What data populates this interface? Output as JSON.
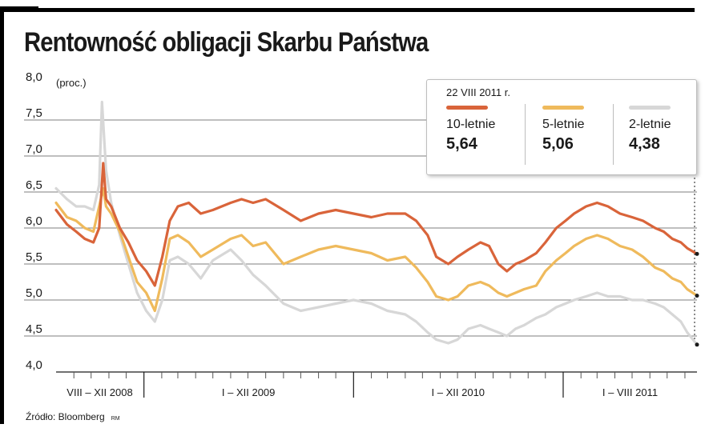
{
  "title": "Rentowność obligacji Skarbu Państwa",
  "source": "Źródło: Bloomberg",
  "source_credit": "RM",
  "legend": {
    "date": "22 VIII 2011 r.",
    "items": [
      {
        "name": "10-letnie",
        "value_text": "5,64"
      },
      {
        "name": "5-letnie",
        "value_text": "5,06"
      },
      {
        "name": "2-letnie",
        "value_text": "4,38"
      }
    ]
  },
  "chart_data": {
    "type": "line",
    "title": "Rentowność obligacji Skarbu Państwa",
    "ylabel": "(proc.)",
    "ylim": [
      4.0,
      8.0
    ],
    "ytick_values": [
      4.0,
      4.5,
      5.0,
      5.5,
      6.0,
      6.5,
      7.0,
      7.5,
      8.0
    ],
    "ytick_labels": [
      "4,0",
      "4,5",
      "5,0",
      "5,5",
      "6,0",
      "6,5",
      "7,0",
      "7,5",
      "8,0"
    ],
    "xlim": [
      "2008-08-01",
      "2011-08-22"
    ],
    "x_periods": [
      {
        "label": "VIII – XII 2008",
        "start": "2008-08-01",
        "end": "2008-12-31"
      },
      {
        "label": "I – XII 2009",
        "start": "2009-01-01",
        "end": "2009-12-31"
      },
      {
        "label": "I – XII 2010",
        "start": "2010-01-01",
        "end": "2010-12-31"
      },
      {
        "label": "I – VIII 2011",
        "start": "2011-01-01",
        "end": "2011-08-22"
      }
    ],
    "x_month_ticks": [
      "2008-09-01",
      "2008-10-01",
      "2008-11-01",
      "2008-12-01",
      "2009-02-01",
      "2009-03-01",
      "2009-04-01",
      "2009-05-01",
      "2009-06-01",
      "2009-07-01",
      "2009-08-01",
      "2009-09-01",
      "2009-10-01",
      "2009-11-01",
      "2009-12-01",
      "2010-02-01",
      "2010-03-01",
      "2010-04-01",
      "2010-05-01",
      "2010-06-01",
      "2010-07-01",
      "2010-08-01",
      "2010-09-01",
      "2010-10-01",
      "2010-11-01",
      "2010-12-01",
      "2011-02-01",
      "2011-03-01",
      "2011-04-01",
      "2011-05-01",
      "2011-06-01",
      "2011-07-01",
      "2011-08-01"
    ],
    "grid": true,
    "legend_position": "top-right",
    "series": [
      {
        "name": "10-letnie",
        "color": "#d9643a",
        "points": [
          [
            "2008-08-01",
            6.25
          ],
          [
            "2008-08-20",
            6.05
          ],
          [
            "2008-09-05",
            5.95
          ],
          [
            "2008-09-20",
            5.85
          ],
          [
            "2008-10-05",
            5.8
          ],
          [
            "2008-10-15",
            6.0
          ],
          [
            "2008-10-22",
            6.9
          ],
          [
            "2008-10-27",
            6.4
          ],
          [
            "2008-11-05",
            6.3
          ],
          [
            "2008-11-20",
            6.0
          ],
          [
            "2008-12-05",
            5.8
          ],
          [
            "2008-12-20",
            5.55
          ],
          [
            "2009-01-05",
            5.4
          ],
          [
            "2009-01-20",
            5.2
          ],
          [
            "2009-02-02",
            5.6
          ],
          [
            "2009-02-15",
            6.1
          ],
          [
            "2009-03-01",
            6.3
          ],
          [
            "2009-03-20",
            6.35
          ],
          [
            "2009-04-10",
            6.2
          ],
          [
            "2009-05-01",
            6.25
          ],
          [
            "2009-06-01",
            6.35
          ],
          [
            "2009-06-20",
            6.4
          ],
          [
            "2009-07-10",
            6.35
          ],
          [
            "2009-08-01",
            6.4
          ],
          [
            "2009-09-01",
            6.25
          ],
          [
            "2009-10-01",
            6.1
          ],
          [
            "2009-11-01",
            6.2
          ],
          [
            "2009-12-01",
            6.25
          ],
          [
            "2010-01-01",
            6.2
          ],
          [
            "2010-02-01",
            6.15
          ],
          [
            "2010-03-01",
            6.2
          ],
          [
            "2010-04-01",
            6.2
          ],
          [
            "2010-04-20",
            6.1
          ],
          [
            "2010-05-10",
            5.9
          ],
          [
            "2010-05-25",
            5.6
          ],
          [
            "2010-06-15",
            5.5
          ],
          [
            "2010-07-01",
            5.6
          ],
          [
            "2010-07-20",
            5.7
          ],
          [
            "2010-08-10",
            5.8
          ],
          [
            "2010-08-25",
            5.75
          ],
          [
            "2010-09-10",
            5.5
          ],
          [
            "2010-09-25",
            5.4
          ],
          [
            "2010-10-10",
            5.5
          ],
          [
            "2010-10-25",
            5.55
          ],
          [
            "2010-11-15",
            5.65
          ],
          [
            "2010-12-01",
            5.8
          ],
          [
            "2010-12-20",
            6.0
          ],
          [
            "2011-01-05",
            6.1
          ],
          [
            "2011-01-20",
            6.2
          ],
          [
            "2011-02-10",
            6.3
          ],
          [
            "2011-03-01",
            6.35
          ],
          [
            "2011-03-20",
            6.3
          ],
          [
            "2011-04-10",
            6.2
          ],
          [
            "2011-05-01",
            6.15
          ],
          [
            "2011-05-20",
            6.1
          ],
          [
            "2011-06-10",
            6.0
          ],
          [
            "2011-06-25",
            5.95
          ],
          [
            "2011-07-10",
            5.85
          ],
          [
            "2011-07-25",
            5.8
          ],
          [
            "2011-08-05",
            5.72
          ],
          [
            "2011-08-22",
            5.64
          ]
        ]
      },
      {
        "name": "5-letnie",
        "color": "#efba5c",
        "points": [
          [
            "2008-08-01",
            6.35
          ],
          [
            "2008-08-20",
            6.15
          ],
          [
            "2008-09-05",
            6.1
          ],
          [
            "2008-09-20",
            6.0
          ],
          [
            "2008-10-05",
            5.95
          ],
          [
            "2008-10-15",
            6.3
          ],
          [
            "2008-10-22",
            6.55
          ],
          [
            "2008-10-27",
            6.3
          ],
          [
            "2008-11-05",
            6.2
          ],
          [
            "2008-11-20",
            5.95
          ],
          [
            "2008-12-05",
            5.6
          ],
          [
            "2008-12-20",
            5.25
          ],
          [
            "2009-01-05",
            5.1
          ],
          [
            "2009-01-20",
            4.85
          ],
          [
            "2009-02-02",
            5.3
          ],
          [
            "2009-02-15",
            5.85
          ],
          [
            "2009-03-01",
            5.9
          ],
          [
            "2009-03-20",
            5.8
          ],
          [
            "2009-04-10",
            5.6
          ],
          [
            "2009-05-01",
            5.7
          ],
          [
            "2009-06-01",
            5.85
          ],
          [
            "2009-06-20",
            5.9
          ],
          [
            "2009-07-10",
            5.75
          ],
          [
            "2009-08-01",
            5.8
          ],
          [
            "2009-09-01",
            5.5
          ],
          [
            "2009-10-01",
            5.6
          ],
          [
            "2009-11-01",
            5.7
          ],
          [
            "2009-12-01",
            5.75
          ],
          [
            "2010-01-01",
            5.7
          ],
          [
            "2010-02-01",
            5.65
          ],
          [
            "2010-03-01",
            5.55
          ],
          [
            "2010-04-01",
            5.6
          ],
          [
            "2010-04-20",
            5.45
          ],
          [
            "2010-05-10",
            5.25
          ],
          [
            "2010-05-25",
            5.05
          ],
          [
            "2010-06-15",
            5.0
          ],
          [
            "2010-07-01",
            5.05
          ],
          [
            "2010-07-20",
            5.2
          ],
          [
            "2010-08-10",
            5.25
          ],
          [
            "2010-08-25",
            5.2
          ],
          [
            "2010-09-10",
            5.1
          ],
          [
            "2010-09-25",
            5.05
          ],
          [
            "2010-10-10",
            5.1
          ],
          [
            "2010-10-25",
            5.15
          ],
          [
            "2010-11-15",
            5.2
          ],
          [
            "2010-12-01",
            5.4
          ],
          [
            "2010-12-20",
            5.55
          ],
          [
            "2011-01-05",
            5.65
          ],
          [
            "2011-01-20",
            5.75
          ],
          [
            "2011-02-10",
            5.85
          ],
          [
            "2011-03-01",
            5.9
          ],
          [
            "2011-03-20",
            5.85
          ],
          [
            "2011-04-10",
            5.75
          ],
          [
            "2011-05-01",
            5.7
          ],
          [
            "2011-05-20",
            5.6
          ],
          [
            "2011-06-10",
            5.45
          ],
          [
            "2011-06-25",
            5.4
          ],
          [
            "2011-07-10",
            5.3
          ],
          [
            "2011-07-25",
            5.25
          ],
          [
            "2011-08-05",
            5.15
          ],
          [
            "2011-08-22",
            5.06
          ]
        ]
      },
      {
        "name": "2-letnie",
        "color": "#d7d7d7",
        "points": [
          [
            "2008-08-01",
            6.55
          ],
          [
            "2008-08-20",
            6.4
          ],
          [
            "2008-09-05",
            6.3
          ],
          [
            "2008-09-20",
            6.3
          ],
          [
            "2008-10-05",
            6.25
          ],
          [
            "2008-10-15",
            6.6
          ],
          [
            "2008-10-20",
            7.75
          ],
          [
            "2008-10-27",
            6.8
          ],
          [
            "2008-11-05",
            6.35
          ],
          [
            "2008-11-20",
            5.9
          ],
          [
            "2008-12-05",
            5.5
          ],
          [
            "2008-12-20",
            5.1
          ],
          [
            "2009-01-05",
            4.85
          ],
          [
            "2009-01-20",
            4.7
          ],
          [
            "2009-02-02",
            5.0
          ],
          [
            "2009-02-15",
            5.55
          ],
          [
            "2009-03-01",
            5.6
          ],
          [
            "2009-03-20",
            5.5
          ],
          [
            "2009-04-10",
            5.3
          ],
          [
            "2009-05-01",
            5.55
          ],
          [
            "2009-06-01",
            5.7
          ],
          [
            "2009-06-20",
            5.55
          ],
          [
            "2009-07-10",
            5.35
          ],
          [
            "2009-08-01",
            5.2
          ],
          [
            "2009-09-01",
            4.95
          ],
          [
            "2009-10-01",
            4.85
          ],
          [
            "2009-11-01",
            4.9
          ],
          [
            "2009-12-01",
            4.95
          ],
          [
            "2010-01-01",
            5.0
          ],
          [
            "2010-02-01",
            4.95
          ],
          [
            "2010-03-01",
            4.85
          ],
          [
            "2010-04-01",
            4.8
          ],
          [
            "2010-04-20",
            4.7
          ],
          [
            "2010-05-10",
            4.55
          ],
          [
            "2010-05-25",
            4.45
          ],
          [
            "2010-06-15",
            4.4
          ],
          [
            "2010-07-01",
            4.45
          ],
          [
            "2010-07-20",
            4.6
          ],
          [
            "2010-08-10",
            4.65
          ],
          [
            "2010-08-25",
            4.6
          ],
          [
            "2010-09-10",
            4.55
          ],
          [
            "2010-09-25",
            4.5
          ],
          [
            "2010-10-10",
            4.6
          ],
          [
            "2010-10-25",
            4.65
          ],
          [
            "2010-11-15",
            4.75
          ],
          [
            "2010-12-01",
            4.8
          ],
          [
            "2010-12-20",
            4.9
          ],
          [
            "2011-01-05",
            4.95
          ],
          [
            "2011-01-20",
            5.0
          ],
          [
            "2011-02-10",
            5.05
          ],
          [
            "2011-03-01",
            5.1
          ],
          [
            "2011-03-20",
            5.05
          ],
          [
            "2011-04-10",
            5.05
          ],
          [
            "2011-05-01",
            5.0
          ],
          [
            "2011-05-20",
            5.0
          ],
          [
            "2011-06-10",
            4.95
          ],
          [
            "2011-06-25",
            4.9
          ],
          [
            "2011-07-10",
            4.8
          ],
          [
            "2011-07-25",
            4.7
          ],
          [
            "2011-08-05",
            4.55
          ],
          [
            "2011-08-22",
            4.38
          ]
        ]
      }
    ]
  }
}
